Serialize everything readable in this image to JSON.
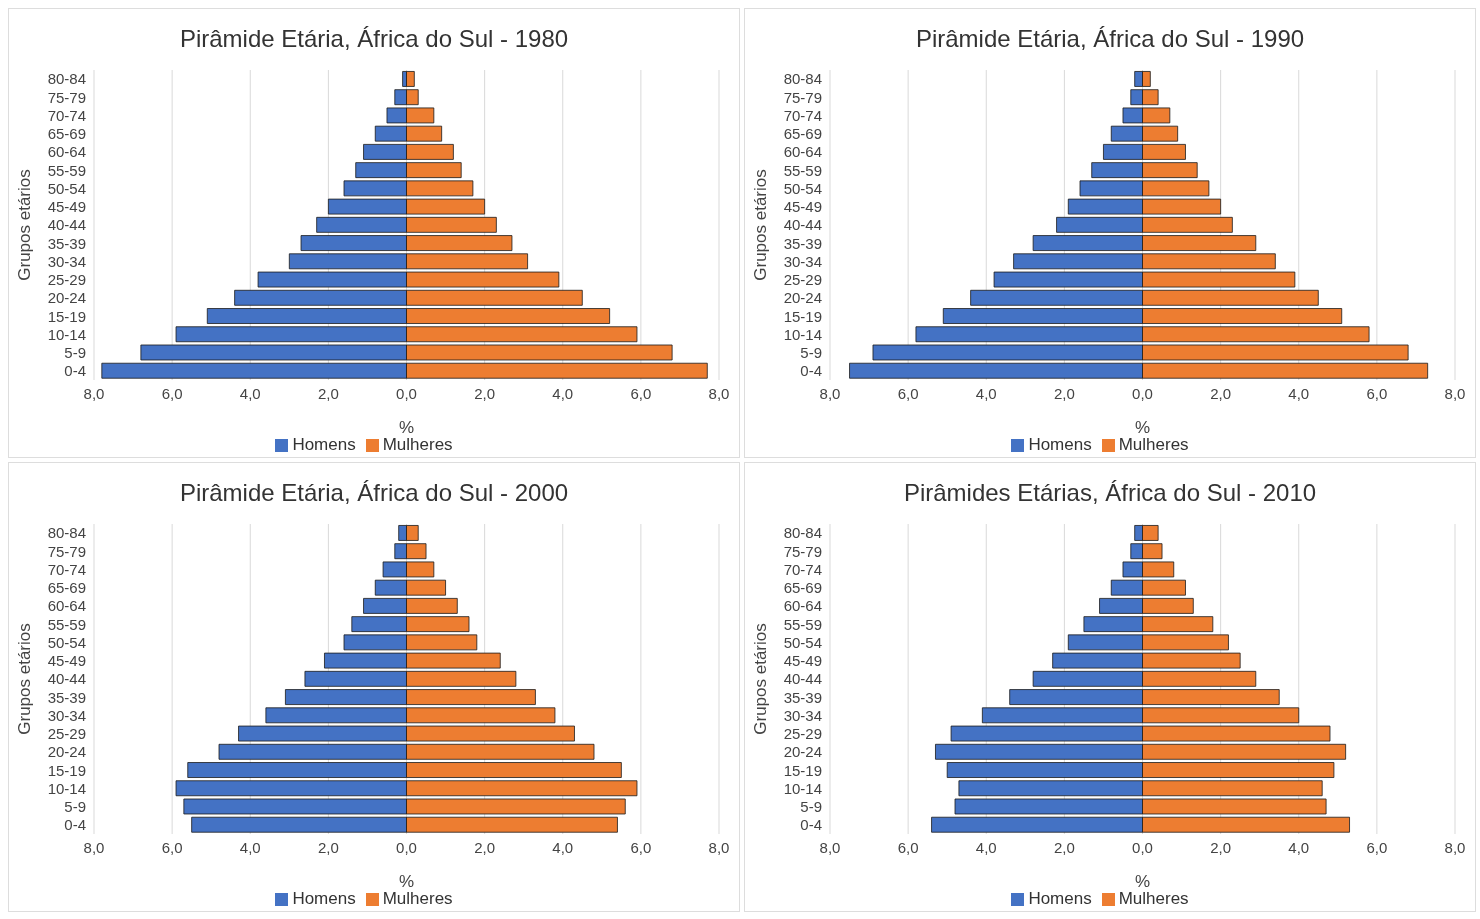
{
  "chart_data": [
    {
      "type": "bar",
      "title": "Pirâmide Etária, África do Sul - 1980",
      "xlabel": "%",
      "ylabel": "Grupos etários",
      "orientation": "horizontal",
      "stacked": true,
      "grid": "x",
      "legend": "bottom",
      "categories": [
        "80-84",
        "75-79",
        "70-74",
        "65-69",
        "60-64",
        "55-59",
        "50-54",
        "45-49",
        "40-44",
        "35-39",
        "30-34",
        "25-29",
        "20-24",
        "15-19",
        "10-14",
        "5-9",
        "0-4"
      ],
      "xlim": [
        -8,
        8
      ],
      "xticks": [
        {
          "value": -8,
          "label": "8,0"
        },
        {
          "value": -6,
          "label": "6,0"
        },
        {
          "value": -4,
          "label": "4,0"
        },
        {
          "value": -2,
          "label": "2,0"
        },
        {
          "value": 0,
          "label": "0,0"
        },
        {
          "value": 2,
          "label": "2,0"
        },
        {
          "value": 4,
          "label": "4,0"
        },
        {
          "value": 6,
          "label": "6,0"
        },
        {
          "value": 8,
          "label": "8,0"
        }
      ],
      "series": [
        {
          "name": "Homens",
          "color": "#4472c4",
          "values": [
            -0.1,
            -0.3,
            -0.5,
            -0.8,
            -1.1,
            -1.3,
            -1.6,
            -2.0,
            -2.3,
            -2.7,
            -3.0,
            -3.8,
            -4.4,
            -5.1,
            -5.9,
            -6.8,
            -7.8
          ]
        },
        {
          "name": "Mulheres",
          "color": "#ed7d31",
          "values": [
            0.2,
            0.3,
            0.7,
            0.9,
            1.2,
            1.4,
            1.7,
            2.0,
            2.3,
            2.7,
            3.1,
            3.9,
            4.5,
            5.2,
            5.9,
            6.8,
            7.7
          ]
        }
      ]
    },
    {
      "type": "bar",
      "title": "Pirâmide Etária, África do Sul - 1990",
      "xlabel": "%",
      "ylabel": "Grupos etários",
      "orientation": "horizontal",
      "stacked": true,
      "grid": "x",
      "legend": "bottom",
      "categories": [
        "80-84",
        "75-79",
        "70-74",
        "65-69",
        "60-64",
        "55-59",
        "50-54",
        "45-49",
        "40-44",
        "35-39",
        "30-34",
        "25-29",
        "20-24",
        "15-19",
        "10-14",
        "5-9",
        "0-4"
      ],
      "xlim": [
        -8,
        8
      ],
      "xticks": [
        {
          "value": -8,
          "label": "8,0"
        },
        {
          "value": -6,
          "label": "6,0"
        },
        {
          "value": -4,
          "label": "4,0"
        },
        {
          "value": -2,
          "label": "2,0"
        },
        {
          "value": 0,
          "label": "0,0"
        },
        {
          "value": 2,
          "label": "2,0"
        },
        {
          "value": 4,
          "label": "4,0"
        },
        {
          "value": 6,
          "label": "6,0"
        },
        {
          "value": 8,
          "label": "8,0"
        }
      ],
      "series": [
        {
          "name": "Homens",
          "color": "#4472c4",
          "values": [
            -0.2,
            -0.3,
            -0.5,
            -0.8,
            -1.0,
            -1.3,
            -1.6,
            -1.9,
            -2.2,
            -2.8,
            -3.3,
            -3.8,
            -4.4,
            -5.1,
            -5.8,
            -6.9,
            -7.5
          ]
        },
        {
          "name": "Mulheres",
          "color": "#ed7d31",
          "values": [
            0.2,
            0.4,
            0.7,
            0.9,
            1.1,
            1.4,
            1.7,
            2.0,
            2.3,
            2.9,
            3.4,
            3.9,
            4.5,
            5.1,
            5.8,
            6.8,
            7.3
          ]
        }
      ]
    },
    {
      "type": "bar",
      "title": "Pirâmide Etária, África do Sul - 2000",
      "xlabel": "%",
      "ylabel": "Grupos etários",
      "orientation": "horizontal",
      "stacked": true,
      "grid": "x",
      "legend": "bottom",
      "categories": [
        "80-84",
        "75-79",
        "70-74",
        "65-69",
        "60-64",
        "55-59",
        "50-54",
        "45-49",
        "40-44",
        "35-39",
        "30-34",
        "25-29",
        "20-24",
        "15-19",
        "10-14",
        "5-9",
        "0-4"
      ],
      "xlim": [
        -8,
        8
      ],
      "xticks": [
        {
          "value": -8,
          "label": "8,0"
        },
        {
          "value": -6,
          "label": "6,0"
        },
        {
          "value": -4,
          "label": "4,0"
        },
        {
          "value": -2,
          "label": "2,0"
        },
        {
          "value": 0,
          "label": "0,0"
        },
        {
          "value": 2,
          "label": "2,0"
        },
        {
          "value": 4,
          "label": "4,0"
        },
        {
          "value": 6,
          "label": "6,0"
        },
        {
          "value": 8,
          "label": "8,0"
        }
      ],
      "series": [
        {
          "name": "Homens",
          "color": "#4472c4",
          "values": [
            -0.2,
            -0.3,
            -0.6,
            -0.8,
            -1.1,
            -1.4,
            -1.6,
            -2.1,
            -2.6,
            -3.1,
            -3.6,
            -4.3,
            -4.8,
            -5.6,
            -5.9,
            -5.7,
            -5.5
          ]
        },
        {
          "name": "Mulheres",
          "color": "#ed7d31",
          "values": [
            0.3,
            0.5,
            0.7,
            1.0,
            1.3,
            1.6,
            1.8,
            2.4,
            2.8,
            3.3,
            3.8,
            4.3,
            4.8,
            5.5,
            5.9,
            5.6,
            5.4
          ]
        }
      ]
    },
    {
      "type": "bar",
      "title": "Pirâmides Etárias, África do Sul - 2010",
      "xlabel": "%",
      "ylabel": "Grupos etários",
      "orientation": "horizontal",
      "stacked": true,
      "grid": "x",
      "legend": "bottom",
      "categories": [
        "80-84",
        "75-79",
        "70-74",
        "65-69",
        "60-64",
        "55-59",
        "50-54",
        "45-49",
        "40-44",
        "35-39",
        "30-34",
        "25-29",
        "20-24",
        "15-19",
        "10-14",
        "5-9",
        "0-4"
      ],
      "xlim": [
        -8,
        8
      ],
      "xticks": [
        {
          "value": -8,
          "label": "8,0"
        },
        {
          "value": -6,
          "label": "6,0"
        },
        {
          "value": -4,
          "label": "4,0"
        },
        {
          "value": -2,
          "label": "2,0"
        },
        {
          "value": 0,
          "label": "0,0"
        },
        {
          "value": 2,
          "label": "2,0"
        },
        {
          "value": 4,
          "label": "4,0"
        },
        {
          "value": 6,
          "label": "6,0"
        },
        {
          "value": 8,
          "label": "8,0"
        }
      ],
      "series": [
        {
          "name": "Homens",
          "color": "#4472c4",
          "values": [
            -0.2,
            -0.3,
            -0.5,
            -0.8,
            -1.1,
            -1.5,
            -1.9,
            -2.3,
            -2.8,
            -3.4,
            -4.1,
            -4.9,
            -5.3,
            -5.0,
            -4.7,
            -4.8,
            -5.4
          ]
        },
        {
          "name": "Mulheres",
          "color": "#ed7d31",
          "values": [
            0.4,
            0.5,
            0.8,
            1.1,
            1.3,
            1.8,
            2.2,
            2.5,
            2.9,
            3.5,
            4.0,
            4.8,
            5.2,
            4.9,
            4.6,
            4.7,
            5.3
          ]
        }
      ]
    }
  ]
}
